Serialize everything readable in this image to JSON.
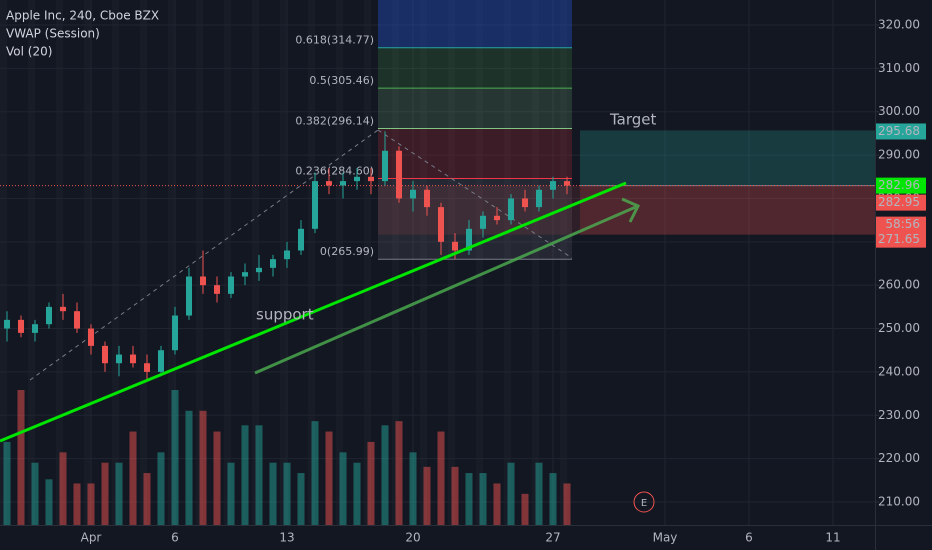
{
  "chart_data": {
    "type": "candlestick",
    "title": "Apple Inc, 240, Cboe BZX",
    "indicators": [
      "VWAP (Session)",
      "Vol (20)"
    ],
    "categories": [
      null,
      null,
      null,
      null,
      null,
      null,
      "Apr",
      null,
      null,
      null,
      null,
      null,
      "6",
      null,
      null,
      null,
      null,
      null,
      null,
      null,
      "13",
      null,
      null,
      null,
      null,
      null,
      null,
      null,
      null,
      "20",
      null,
      null,
      null,
      null,
      null,
      null,
      null,
      null,
      null,
      "27",
      null,
      null,
      null,
      null,
      null,
      null,
      null,
      "May",
      null,
      null,
      null,
      null,
      null,
      "6",
      null,
      null,
      null,
      null,
      null,
      "11",
      null,
      null
    ],
    "open": [
      250,
      252,
      249,
      251,
      255,
      254,
      250,
      246,
      242,
      244,
      242,
      240,
      245,
      253,
      262,
      260,
      258,
      262,
      263,
      264,
      266,
      268,
      273,
      284,
      283,
      284,
      285,
      284,
      291,
      280,
      282,
      278,
      270,
      268,
      273,
      276,
      275,
      280,
      278,
      282,
      284,
      null,
      null,
      null,
      null,
      null,
      null,
      null,
      null,
      null,
      null,
      null,
      null,
      null,
      null,
      null,
      null,
      null,
      null,
      null,
      null,
      null
    ],
    "high": [
      254,
      253,
      252,
      256,
      258,
      256,
      251,
      247,
      246,
      246,
      244,
      246,
      255,
      264,
      268,
      262,
      263,
      265,
      267,
      267,
      270,
      275,
      286,
      287,
      286,
      287,
      287,
      295.5,
      292,
      284,
      283,
      279,
      272,
      275,
      277,
      278,
      281,
      282,
      283,
      285,
      285,
      null,
      null,
      null,
      null,
      null,
      null,
      null,
      null,
      null,
      null,
      null,
      null,
      null,
      null,
      null,
      null,
      null,
      null,
      null,
      null,
      null
    ],
    "low": [
      247,
      248,
      247,
      250,
      252,
      249,
      244,
      240,
      239,
      241,
      238,
      239,
      244,
      252,
      258,
      256,
      257,
      260,
      261,
      262,
      264,
      267,
      272,
      281,
      280,
      282,
      281,
      283,
      279,
      277,
      276,
      267,
      266,
      267,
      271,
      274,
      274,
      277,
      277,
      280,
      281,
      null,
      null,
      null,
      null,
      null,
      null,
      null,
      null,
      null,
      null,
      null,
      null,
      null,
      null,
      null,
      null,
      null,
      null,
      null,
      null,
      null
    ],
    "close": [
      252,
      249,
      251,
      255,
      254,
      250,
      246,
      242,
      244,
      242,
      240,
      245,
      253,
      262,
      260,
      258,
      262,
      263,
      264,
      266,
      268,
      273,
      284,
      283,
      284,
      285,
      284,
      291,
      280,
      282,
      278,
      270,
      268,
      273,
      276,
      275,
      280,
      278,
      282,
      284,
      282.96,
      null,
      null,
      null,
      null,
      null,
      null,
      null,
      null,
      null,
      null,
      null,
      null,
      null,
      null,
      null,
      null,
      null,
      null,
      null,
      null,
      null
    ],
    "volume": [
      40,
      65,
      30,
      22,
      35,
      20,
      20,
      30,
      30,
      45,
      25,
      35,
      65,
      55,
      55,
      45,
      30,
      48,
      48,
      30,
      30,
      25,
      50,
      45,
      35,
      30,
      40,
      48,
      50,
      35,
      28,
      45,
      28,
      25,
      25,
      20,
      30,
      15,
      30,
      25,
      20,
      null,
      null,
      null,
      null,
      null,
      null,
      null,
      null,
      null,
      null,
      null,
      null,
      null,
      null,
      null,
      null,
      null,
      null,
      null,
      null,
      null
    ],
    "up_color": "#26a69a",
    "down_color": "#ef5350",
    "ylim": [
      204.69,
      325.77
    ],
    "yticks": [
      {
        "value": 210,
        "label": "210.00"
      },
      {
        "value": 220,
        "label": "220.00"
      },
      {
        "value": 230,
        "label": "230.00"
      },
      {
        "value": 240,
        "label": "240.00"
      },
      {
        "value": 250,
        "label": "250.00"
      },
      {
        "value": 260,
        "label": "260.00"
      },
      {
        "value": 270,
        "label": "270.00"
      },
      {
        "value": 280,
        "label": "280.00"
      },
      {
        "value": 290,
        "label": "290.00"
      },
      {
        "value": 300,
        "label": "300.00"
      },
      {
        "value": 310,
        "label": "310.00"
      },
      {
        "value": 320,
        "label": "320.00"
      }
    ],
    "grid": true,
    "fib_levels": [
      {
        "value": 314.77,
        "label": "0.618(314.77)",
        "color": "#26a69a"
      },
      {
        "value": 305.46,
        "label": "0.5(305.46)",
        "color": "#4caf50"
      },
      {
        "value": 296.14,
        "label": "0.382(296.14)",
        "color": "#81c784"
      },
      {
        "value": 284.6,
        "label": "0.236(284.60)",
        "color": "#f23645"
      },
      {
        "value": 265.99,
        "label": "0(265.99)",
        "color": "#787b86"
      }
    ],
    "position": {
      "target": 295.68,
      "entry": 282.95,
      "stop": 271.65
    },
    "last_price": 282.96,
    "countdown": "58:56",
    "annotations": {
      "support": "support",
      "target": "Target",
      "earnings": "E"
    }
  }
}
